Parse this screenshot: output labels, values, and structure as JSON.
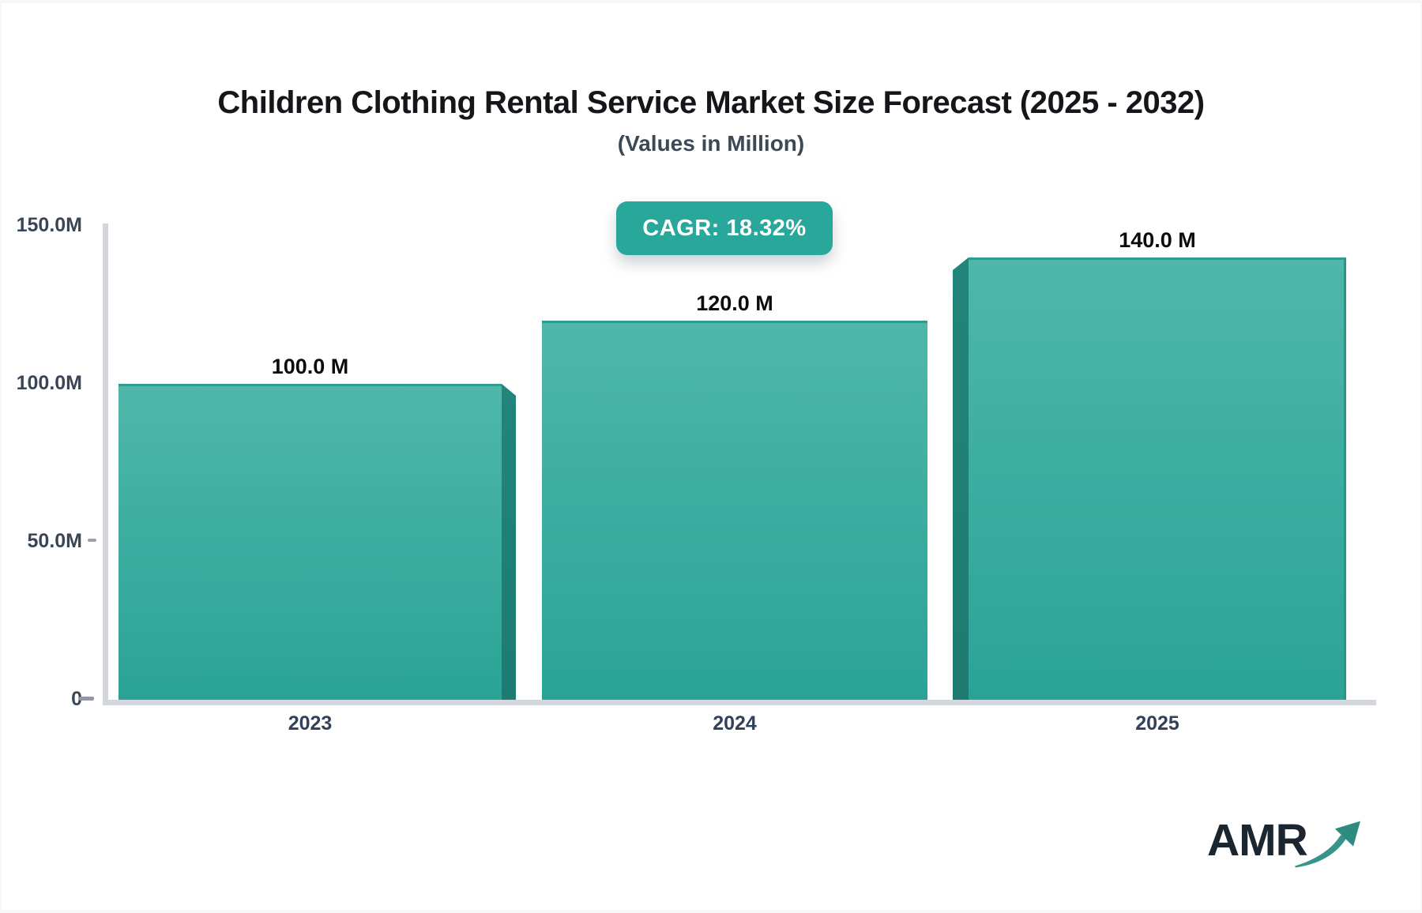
{
  "title": "Children Clothing Rental Service Market Size Forecast (2025 - 2032)",
  "subtitle": "(Values in Million)",
  "cagr_badge": "CAGR: 18.32%",
  "logo_text": "AMR",
  "chart_data": {
    "type": "bar",
    "title": "Children Clothing Rental Service Market Size Forecast (2025 - 2032)",
    "subtitle": "(Values in Million)",
    "categories": [
      "2023",
      "2024",
      "2025"
    ],
    "values": [
      100,
      120,
      140
    ],
    "bar_labels": [
      "100.0 M",
      "120.0 M",
      "140.0 M"
    ],
    "unit": "Million",
    "ylim": [
      0,
      150
    ],
    "y_ticks": [
      "150.0M",
      "100.0M",
      "50.0M",
      "0"
    ],
    "xlabel": "",
    "ylabel": "",
    "grid": false,
    "legend": false,
    "annotation": "CAGR: 18.32%",
    "colors": {
      "bar_top": "#4eb7aa",
      "bar_bottom": "#2aa396",
      "bar_side_3d": "#1e7b71",
      "badge_background": "#2aa79b",
      "axis_line": "#d4d6dc",
      "axis_text": "#3a4658",
      "title_text": "#141619"
    }
  }
}
